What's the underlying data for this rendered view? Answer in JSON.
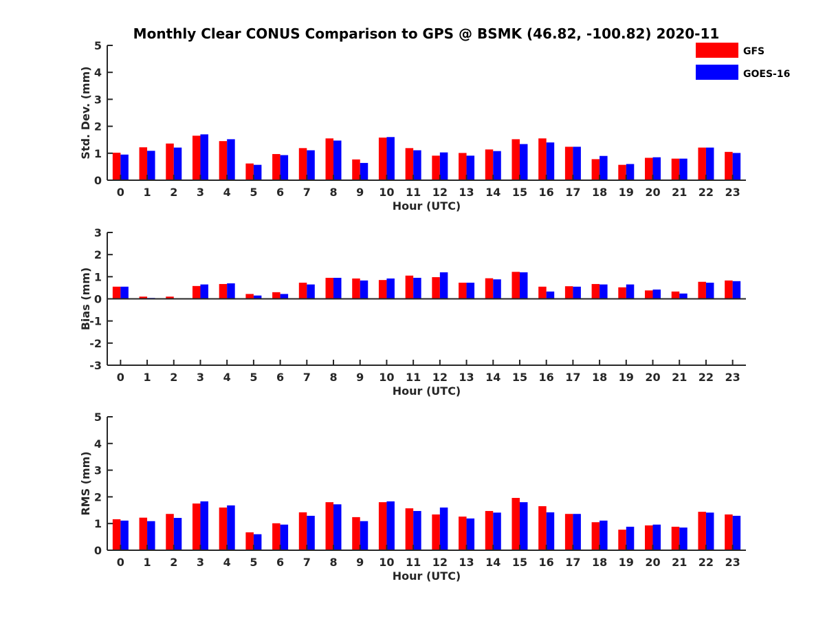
{
  "colors": {
    "gfs": "#ff0000",
    "goes": "#0000ff",
    "axis": "#262626"
  },
  "chart_data": {
    "type": "bar",
    "title": "Monthly Clear CONUS Comparison to GPS @ BSMK (46.82, -100.82) 2020-11",
    "legend": {
      "placement": "top-right",
      "entries": [
        "GFS",
        "GOES-16"
      ]
    },
    "grid": false,
    "categories": [
      "0",
      "1",
      "2",
      "3",
      "4",
      "5",
      "6",
      "7",
      "8",
      "9",
      "10",
      "11",
      "12",
      "13",
      "14",
      "15",
      "16",
      "17",
      "18",
      "19",
      "20",
      "21",
      "22",
      "23"
    ],
    "panels": [
      {
        "ylabel": "Std. Dev. (mm)",
        "xlabel": "Hour (UTC)",
        "ylim": [
          0,
          5
        ],
        "yticks": [
          0,
          1,
          2,
          3,
          4,
          5
        ],
        "series": [
          {
            "name": "GFS",
            "values": [
              1.02,
              1.22,
              1.36,
              1.65,
              1.45,
              0.62,
              0.97,
              1.19,
              1.55,
              0.77,
              1.58,
              1.19,
              0.91,
              1.01,
              1.14,
              1.52,
              1.55,
              1.24,
              0.78,
              0.57,
              0.83,
              0.8,
              1.21,
              1.05
            ]
          },
          {
            "name": "GOES-16",
            "values": [
              0.95,
              1.09,
              1.21,
              1.7,
              1.52,
              0.57,
              0.93,
              1.11,
              1.47,
              0.64,
              1.6,
              1.11,
              1.03,
              0.91,
              1.08,
              1.34,
              1.4,
              1.24,
              0.9,
              0.6,
              0.85,
              0.8,
              1.21,
              1.01
            ]
          }
        ]
      },
      {
        "ylabel": "Bias (mm)",
        "xlabel": "Hour (UTC)",
        "ylim": [
          -3,
          3
        ],
        "yticks": [
          -3,
          -2,
          -1,
          0,
          1,
          2,
          3
        ],
        "series": [
          {
            "name": "GFS",
            "values": [
              0.55,
              0.1,
              0.1,
              0.58,
              0.67,
              0.22,
              0.3,
              0.73,
              0.95,
              0.92,
              0.85,
              1.05,
              0.98,
              0.73,
              0.93,
              1.22,
              0.55,
              0.57,
              0.67,
              0.52,
              0.38,
              0.33,
              0.77,
              0.83
            ]
          },
          {
            "name": "GOES-16",
            "values": [
              0.55,
              0.04,
              0.03,
              0.65,
              0.7,
              0.15,
              0.22,
              0.65,
              0.95,
              0.83,
              0.92,
              0.95,
              1.2,
              0.73,
              0.88,
              1.2,
              0.33,
              0.55,
              0.65,
              0.65,
              0.42,
              0.24,
              0.73,
              0.8
            ]
          }
        ]
      },
      {
        "ylabel": "RMS (mm)",
        "xlabel": "Hour (UTC)",
        "ylim": [
          0,
          5
        ],
        "yticks": [
          0,
          1,
          2,
          3,
          4,
          5
        ],
        "series": [
          {
            "name": "GFS",
            "values": [
              1.16,
              1.22,
              1.36,
              1.75,
              1.6,
              0.67,
              1.01,
              1.42,
              1.8,
              1.24,
              1.8,
              1.57,
              1.34,
              1.26,
              1.47,
              1.96,
              1.65,
              1.36,
              1.05,
              0.77,
              0.93,
              0.88,
              1.44,
              1.34
            ]
          },
          {
            "name": "GOES-16",
            "values": [
              1.11,
              1.09,
              1.21,
              1.83,
              1.68,
              0.6,
              0.96,
              1.29,
              1.72,
              1.09,
              1.83,
              1.47,
              1.6,
              1.19,
              1.41,
              1.8,
              1.42,
              1.36,
              1.11,
              0.88,
              0.96,
              0.85,
              1.41,
              1.29
            ]
          }
        ]
      }
    ]
  }
}
